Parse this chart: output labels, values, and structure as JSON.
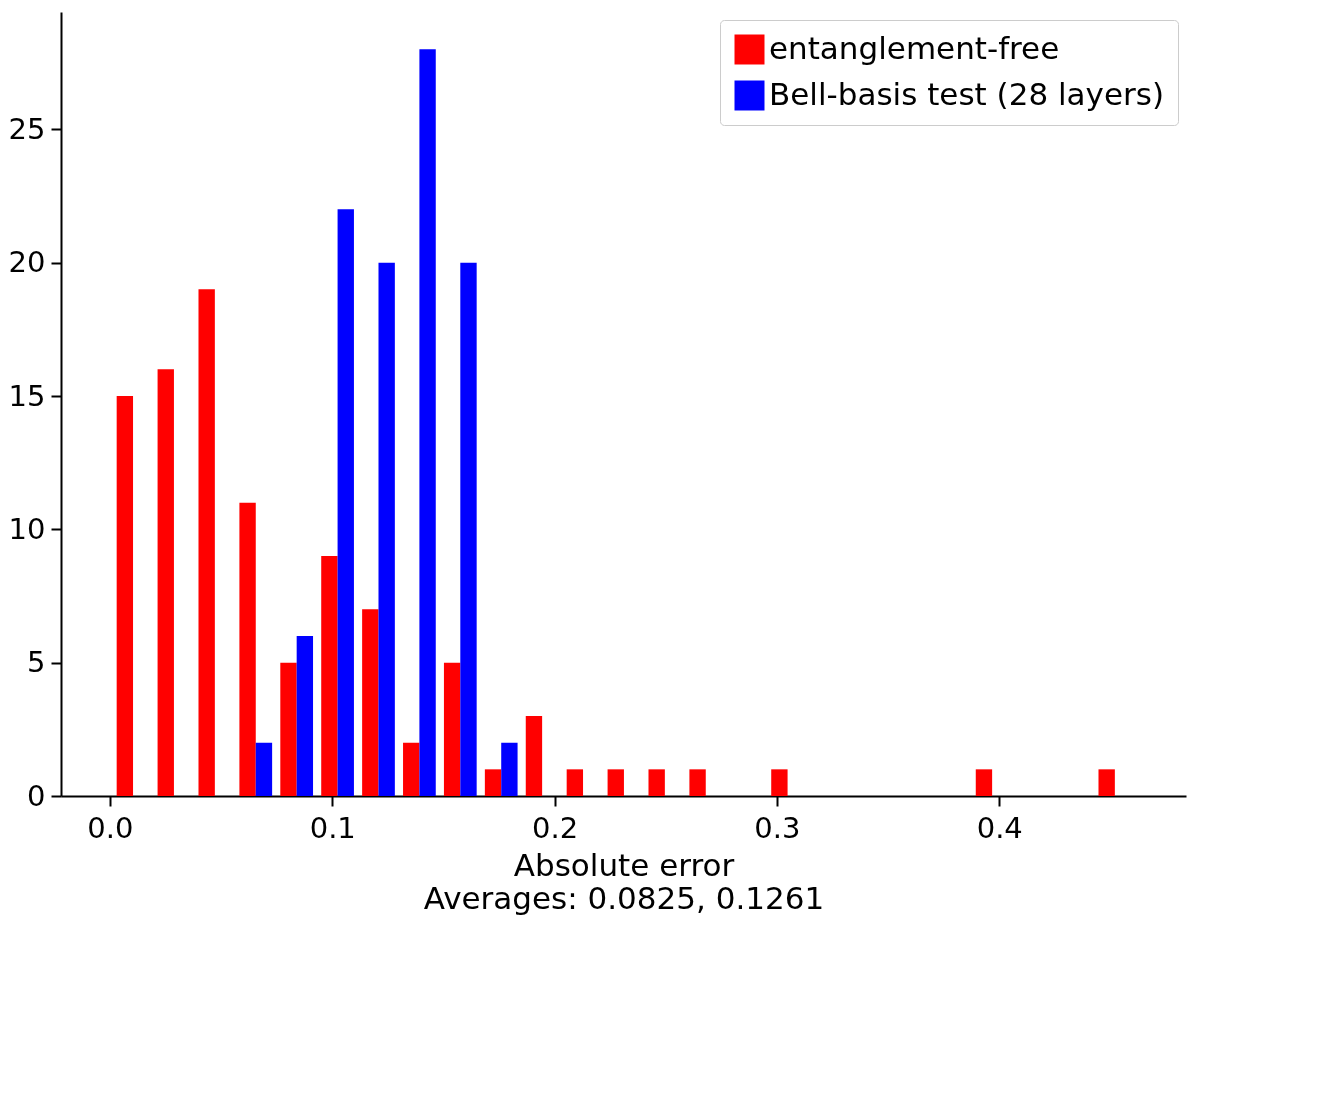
{
  "chart_data": {
    "type": "histogram",
    "xlabel": "Absolute error\nAverages: 0.0825, 0.1261",
    "bins": [
      0.0012,
      0.0196,
      0.038,
      0.0564,
      0.0748,
      0.0932,
      0.1116,
      0.13,
      0.1484,
      0.1668,
      0.1852,
      0.2036,
      0.222,
      0.2404,
      0.2588,
      0.2772,
      0.2956,
      0.314,
      0.3324,
      0.3508,
      0.3692,
      0.3876,
      0.406,
      0.4244,
      0.4428,
      0.4612
    ],
    "series": [
      {
        "name": "entanglement-free",
        "color": "#ff0000",
        "values": [
          15,
          16,
          19,
          11,
          5,
          9,
          7,
          2,
          5,
          1,
          3,
          1,
          1,
          1,
          1,
          0,
          1,
          0,
          0,
          0,
          0,
          1,
          0,
          0,
          1
        ]
      },
      {
        "name": "Bell-basis test (28 layers)",
        "color": "#0000ff",
        "values": [
          0,
          0,
          0,
          2,
          6,
          22,
          20,
          28,
          20,
          2,
          0,
          0,
          0,
          0,
          0,
          0,
          0,
          0,
          0,
          0,
          0,
          0,
          0,
          0,
          0
        ]
      }
    ],
    "xlim": [
      -0.022,
      0.484
    ],
    "ylim": [
      0,
      29.4
    ],
    "xticks": [
      {
        "value": 0,
        "label": "0.0"
      },
      {
        "value": 0.1,
        "label": "0.1"
      },
      {
        "value": 0.2,
        "label": "0.2"
      },
      {
        "value": 0.3,
        "label": "0.3"
      },
      {
        "value": 0.4,
        "label": "0.4"
      }
    ],
    "yticks": [
      0,
      5,
      10,
      15,
      20,
      25
    ],
    "grid": false,
    "legend": "top right"
  }
}
